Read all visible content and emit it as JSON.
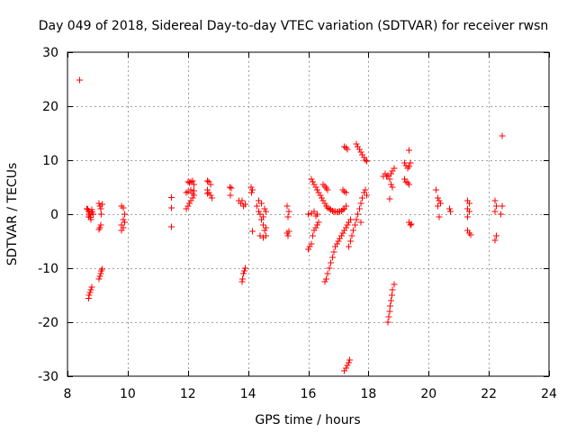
{
  "chart_data": {
    "type": "scatter",
    "title": "Day 049 of 2018, Sidereal Day-to-day VTEC variation (SDTVAR) for receiver rwsn",
    "xlabel": "GPS time / hours",
    "ylabel": "SDTVAR / TECUs",
    "xlim": [
      8,
      24
    ],
    "ylim": [
      -30,
      30
    ],
    "xticks": [
      8,
      10,
      12,
      14,
      16,
      18,
      20,
      22,
      24
    ],
    "yticks": [
      -30,
      -20,
      -10,
      0,
      10,
      20,
      30
    ],
    "grid": true,
    "marker": "+",
    "color": "#ff0000",
    "series": [
      {
        "name": "SDTVAR",
        "points": [
          [
            8.4,
            24.8
          ],
          [
            8.7,
            -15.6
          ],
          [
            8.72,
            -15.0
          ],
          [
            8.75,
            -14.5
          ],
          [
            8.78,
            -14.0
          ],
          [
            8.8,
            -13.5
          ],
          [
            8.65,
            1.0
          ],
          [
            8.7,
            0.6
          ],
          [
            8.72,
            0.2
          ],
          [
            8.74,
            -0.2
          ],
          [
            8.76,
            -0.6
          ],
          [
            8.78,
            -1.0
          ],
          [
            8.8,
            0.8
          ],
          [
            8.82,
            0.4
          ],
          [
            8.85,
            0.0
          ],
          [
            8.7,
            -0.5
          ],
          [
            8.68,
            0.9
          ],
          [
            9.05,
            -12.0
          ],
          [
            9.08,
            -11.5
          ],
          [
            9.1,
            -11.0
          ],
          [
            9.12,
            -10.5
          ],
          [
            9.15,
            -10.2
          ],
          [
            9.05,
            2.0
          ],
          [
            9.08,
            1.5
          ],
          [
            9.1,
            1.0
          ],
          [
            9.12,
            0.0
          ],
          [
            9.1,
            -2.0
          ],
          [
            9.08,
            -2.5
          ],
          [
            9.05,
            -2.8
          ],
          [
            9.15,
            1.8
          ],
          [
            9.8,
            1.5
          ],
          [
            9.85,
            1.2
          ],
          [
            9.9,
            0.0
          ],
          [
            9.85,
            -1.0
          ],
          [
            9.8,
            -2.0
          ],
          [
            9.85,
            -2.5
          ],
          [
            9.8,
            -3.0
          ],
          [
            9.9,
            -1.5
          ],
          [
            11.45,
            3.1
          ],
          [
            11.45,
            1.2
          ],
          [
            11.45,
            -2.3
          ],
          [
            11.95,
            1.0
          ],
          [
            12.0,
            1.5
          ],
          [
            12.05,
            2.0
          ],
          [
            12.1,
            2.5
          ],
          [
            12.15,
            3.0
          ],
          [
            12.2,
            3.5
          ],
          [
            12.0,
            6.0
          ],
          [
            12.05,
            5.8
          ],
          [
            12.1,
            6.0
          ],
          [
            12.15,
            6.2
          ],
          [
            12.2,
            5.5
          ],
          [
            11.95,
            4.0
          ],
          [
            12.0,
            4.2
          ],
          [
            12.1,
            4.5
          ],
          [
            12.15,
            3.8
          ],
          [
            12.2,
            4.3
          ],
          [
            12.65,
            6.2
          ],
          [
            12.7,
            6.0
          ],
          [
            12.75,
            5.5
          ],
          [
            12.65,
            4.5
          ],
          [
            12.7,
            4.0
          ],
          [
            12.75,
            3.5
          ],
          [
            12.8,
            3.0
          ],
          [
            12.65,
            3.8
          ],
          [
            13.4,
            5.0
          ],
          [
            13.42,
            3.5
          ],
          [
            13.45,
            4.8
          ],
          [
            13.7,
            2.5
          ],
          [
            13.75,
            2.0
          ],
          [
            13.8,
            2.5
          ],
          [
            13.85,
            1.5
          ],
          [
            13.9,
            1.8
          ],
          [
            13.8,
            -12.5
          ],
          [
            13.82,
            -12.0
          ],
          [
            13.85,
            -11.0
          ],
          [
            13.88,
            -10.5
          ],
          [
            13.9,
            -10.0
          ],
          [
            14.1,
            5.0
          ],
          [
            14.15,
            4.5
          ],
          [
            14.12,
            4.0
          ],
          [
            14.15,
            -3.2
          ],
          [
            14.3,
            1.5
          ],
          [
            14.35,
            0.5
          ],
          [
            14.4,
            0.0
          ],
          [
            14.45,
            -1.0
          ],
          [
            14.5,
            -2.0
          ],
          [
            14.55,
            -3.0
          ],
          [
            14.6,
            -4.0
          ],
          [
            14.5,
            -4.3
          ],
          [
            14.4,
            -4.0
          ],
          [
            14.35,
            2.5
          ],
          [
            14.45,
            2.0
          ],
          [
            14.55,
            1.0
          ],
          [
            14.6,
            0.5
          ],
          [
            14.5,
            -0.5
          ],
          [
            14.6,
            -2.5
          ],
          [
            15.3,
            -3.5
          ],
          [
            15.32,
            -4.0
          ],
          [
            15.35,
            -3.2
          ],
          [
            15.3,
            1.5
          ],
          [
            15.35,
            0.5
          ],
          [
            15.32,
            -0.5
          ],
          [
            16.0,
            -6.5
          ],
          [
            16.05,
            -6.0
          ],
          [
            16.1,
            -5.5
          ],
          [
            16.15,
            -4.0
          ],
          [
            16.2,
            -3.0
          ],
          [
            16.25,
            -2.5
          ],
          [
            16.3,
            -2.0
          ],
          [
            16.35,
            -1.5
          ],
          [
            16.0,
            0.0
          ],
          [
            16.1,
            0.2
          ],
          [
            16.2,
            0.5
          ],
          [
            16.25,
            -0.3
          ],
          [
            16.3,
            0.0
          ],
          [
            16.1,
            6.5
          ],
          [
            16.15,
            6.0
          ],
          [
            16.2,
            5.5
          ],
          [
            16.25,
            5.0
          ],
          [
            16.3,
            4.5
          ],
          [
            16.35,
            4.0
          ],
          [
            16.4,
            3.5
          ],
          [
            16.45,
            3.0
          ],
          [
            16.5,
            2.5
          ],
          [
            16.55,
            2.0
          ],
          [
            16.6,
            1.5
          ],
          [
            16.65,
            1.2
          ],
          [
            16.7,
            1.0
          ],
          [
            16.75,
            0.8
          ],
          [
            16.8,
            0.6
          ],
          [
            16.85,
            0.5
          ],
          [
            16.9,
            0.5
          ],
          [
            16.95,
            0.4
          ],
          [
            17.0,
            0.5
          ],
          [
            17.05,
            0.5
          ],
          [
            17.1,
            0.6
          ],
          [
            17.15,
            0.8
          ],
          [
            17.2,
            1.0
          ],
          [
            17.25,
            1.5
          ],
          [
            16.5,
            5.5
          ],
          [
            16.55,
            5.2
          ],
          [
            16.6,
            4.8
          ],
          [
            16.65,
            4.5
          ],
          [
            16.55,
            -12.5
          ],
          [
            16.6,
            -12.0
          ],
          [
            16.65,
            -11.0
          ],
          [
            16.7,
            -10.0
          ],
          [
            16.75,
            -9.0
          ],
          [
            16.8,
            -8.0
          ],
          [
            16.85,
            -7.0
          ],
          [
            16.9,
            -6.0
          ],
          [
            16.95,
            -5.5
          ],
          [
            17.0,
            -5.0
          ],
          [
            17.05,
            -4.5
          ],
          [
            17.1,
            -4.0
          ],
          [
            17.15,
            -3.5
          ],
          [
            17.2,
            -3.0
          ],
          [
            17.25,
            -2.5
          ],
          [
            17.3,
            -2.0
          ],
          [
            17.35,
            -1.5
          ],
          [
            17.4,
            -1.0
          ],
          [
            17.2,
            -29.0
          ],
          [
            17.25,
            -28.5
          ],
          [
            17.3,
            -28.0
          ],
          [
            17.35,
            -27.5
          ],
          [
            17.38,
            -27.0
          ],
          [
            17.2,
            12.5
          ],
          [
            17.25,
            12.3
          ],
          [
            17.3,
            12.0
          ],
          [
            17.15,
            4.5
          ],
          [
            17.2,
            4.2
          ],
          [
            17.25,
            4.0
          ],
          [
            17.35,
            -6.0
          ],
          [
            17.4,
            -5.0
          ],
          [
            17.45,
            -4.0
          ],
          [
            17.5,
            -3.0
          ],
          [
            17.55,
            -2.0
          ],
          [
            17.6,
            -1.0
          ],
          [
            17.65,
            0.0
          ],
          [
            17.7,
            1.0
          ],
          [
            17.75,
            2.0
          ],
          [
            17.8,
            3.0
          ],
          [
            17.85,
            4.0
          ],
          [
            17.9,
            4.5
          ],
          [
            17.95,
            3.5
          ],
          [
            17.75,
            -1.5
          ],
          [
            17.6,
            13.0
          ],
          [
            17.65,
            12.5
          ],
          [
            17.7,
            12.0
          ],
          [
            17.75,
            11.5
          ],
          [
            17.8,
            11.0
          ],
          [
            17.85,
            10.5
          ],
          [
            17.9,
            10.0
          ],
          [
            17.95,
            9.8
          ],
          [
            18.5,
            7.0
          ],
          [
            18.55,
            7.5
          ],
          [
            18.6,
            7.0
          ],
          [
            18.65,
            7.2
          ],
          [
            18.7,
            6.5
          ],
          [
            18.75,
            7.5
          ],
          [
            18.8,
            8.0
          ],
          [
            18.85,
            8.5
          ],
          [
            18.65,
            -20.0
          ],
          [
            18.68,
            -19.0
          ],
          [
            18.7,
            -18.0
          ],
          [
            18.72,
            -17.0
          ],
          [
            18.75,
            -16.0
          ],
          [
            18.78,
            -15.0
          ],
          [
            18.8,
            -14.0
          ],
          [
            18.85,
            -13.0
          ],
          [
            18.7,
            2.8
          ],
          [
            18.75,
            5.5
          ],
          [
            18.8,
            5.0
          ],
          [
            19.2,
            6.5
          ],
          [
            19.25,
            6.0
          ],
          [
            19.3,
            5.8
          ],
          [
            19.35,
            5.5
          ],
          [
            19.2,
            9.5
          ],
          [
            19.25,
            9.0
          ],
          [
            19.3,
            8.5
          ],
          [
            19.35,
            8.8
          ],
          [
            19.4,
            9.5
          ],
          [
            19.35,
            11.8
          ],
          [
            19.35,
            -1.5
          ],
          [
            19.4,
            -2.0
          ],
          [
            19.42,
            -1.8
          ],
          [
            20.25,
            4.5
          ],
          [
            20.3,
            3.0
          ],
          [
            20.35,
            2.5
          ],
          [
            20.4,
            2.0
          ],
          [
            20.3,
            1.5
          ],
          [
            20.35,
            -0.5
          ],
          [
            20.7,
            1.0
          ],
          [
            20.72,
            0.5
          ],
          [
            21.3,
            2.5
          ],
          [
            21.35,
            2.0
          ],
          [
            21.3,
            1.0
          ],
          [
            21.35,
            0.5
          ],
          [
            21.3,
            -3.0
          ],
          [
            21.35,
            -3.5
          ],
          [
            21.4,
            -3.8
          ],
          [
            21.3,
            -0.5
          ],
          [
            22.2,
            2.5
          ],
          [
            22.25,
            1.5
          ],
          [
            22.2,
            0.5
          ],
          [
            22.25,
            -4.0
          ],
          [
            22.2,
            -4.8
          ],
          [
            22.4,
            0.0
          ],
          [
            22.45,
            1.5
          ],
          [
            22.45,
            14.5
          ]
        ]
      }
    ]
  }
}
